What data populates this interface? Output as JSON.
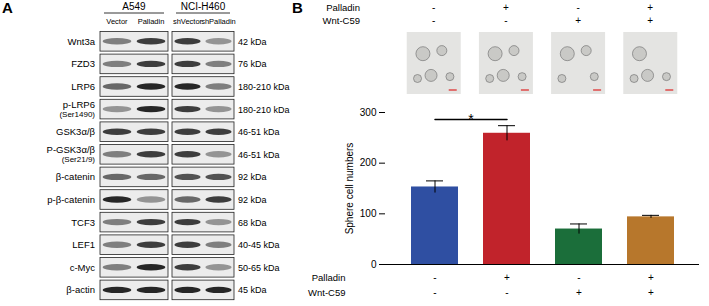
{
  "panel_a": {
    "label": "A",
    "cell_lines": [
      {
        "name": "A549",
        "lanes": [
          "Vector",
          "Palladin"
        ]
      },
      {
        "name": "NCI-H460",
        "lanes": [
          "shVector",
          "shPalladin"
        ]
      }
    ],
    "rows": [
      {
        "protein": "Wnt3a",
        "size": "42 kDa",
        "bands": [
          0.5,
          0.8,
          0.8,
          0.4
        ]
      },
      {
        "protein": "FZD3",
        "size": "76 kDa",
        "bands": [
          0.5,
          0.8,
          0.8,
          0.5
        ]
      },
      {
        "protein": "LRP6",
        "size": "180-210 kDa",
        "bands": [
          0.6,
          0.9,
          0.9,
          0.5
        ]
      },
      {
        "protein": "p-LRP6",
        "site": "(Ser1490)",
        "size": "180-210 kDa",
        "bands": [
          0.4,
          0.9,
          0.8,
          0.4
        ]
      },
      {
        "protein": "GSK3α/β",
        "size": "46-51 kDa",
        "bands": [
          0.8,
          0.8,
          0.8,
          0.8
        ]
      },
      {
        "protein": "P-GSK3α/β",
        "site": "(Ser21/9)",
        "size": "46-51 kDa",
        "bands": [
          0.5,
          0.8,
          0.8,
          0.4
        ]
      },
      {
        "protein": "β-catenin",
        "size": "92 kDa",
        "bands": [
          0.6,
          0.6,
          0.7,
          0.7
        ]
      },
      {
        "protein": "p-β-catenin",
        "size": "92 kDa",
        "bands": [
          0.9,
          0.4,
          0.6,
          0.8
        ]
      },
      {
        "protein": "TCF3",
        "size": "68 kDa",
        "bands": [
          0.5,
          0.8,
          0.8,
          0.4
        ]
      },
      {
        "protein": "LEF1",
        "size": "40-45 kDa",
        "bands": [
          0.5,
          0.8,
          0.8,
          0.5
        ]
      },
      {
        "protein": "c-Myc",
        "size": "50-65 kDa",
        "bands": [
          0.5,
          0.9,
          0.8,
          0.4
        ]
      },
      {
        "protein": "β-actin",
        "size": "45 kDa",
        "bands": [
          0.9,
          0.9,
          0.9,
          0.9
        ]
      }
    ]
  },
  "panel_b": {
    "label": "B",
    "treatments": [
      {
        "name": "Palladin",
        "levels": [
          "-",
          "+",
          "-",
          "+"
        ]
      },
      {
        "name": "Wnt-C59",
        "levels": [
          "-",
          "-",
          "+",
          "+"
        ]
      }
    ]
  },
  "chart_data": {
    "type": "bar",
    "categories": [
      null,
      null,
      null,
      null
    ],
    "values": [
      153,
      259,
      70,
      94
    ],
    "errors": [
      12,
      15,
      10,
      3
    ],
    "colors": [
      "#2f4fa2",
      "#c1232b",
      "#1b6e3a",
      "#b7772c"
    ],
    "ylim": [
      0,
      300
    ],
    "yticks": [
      0,
      100,
      200,
      300
    ],
    "y_label": "Sphere cell numbers",
    "grid": false,
    "annotations": [
      {
        "text": "*",
        "between": [
          0,
          1
        ]
      }
    ]
  }
}
